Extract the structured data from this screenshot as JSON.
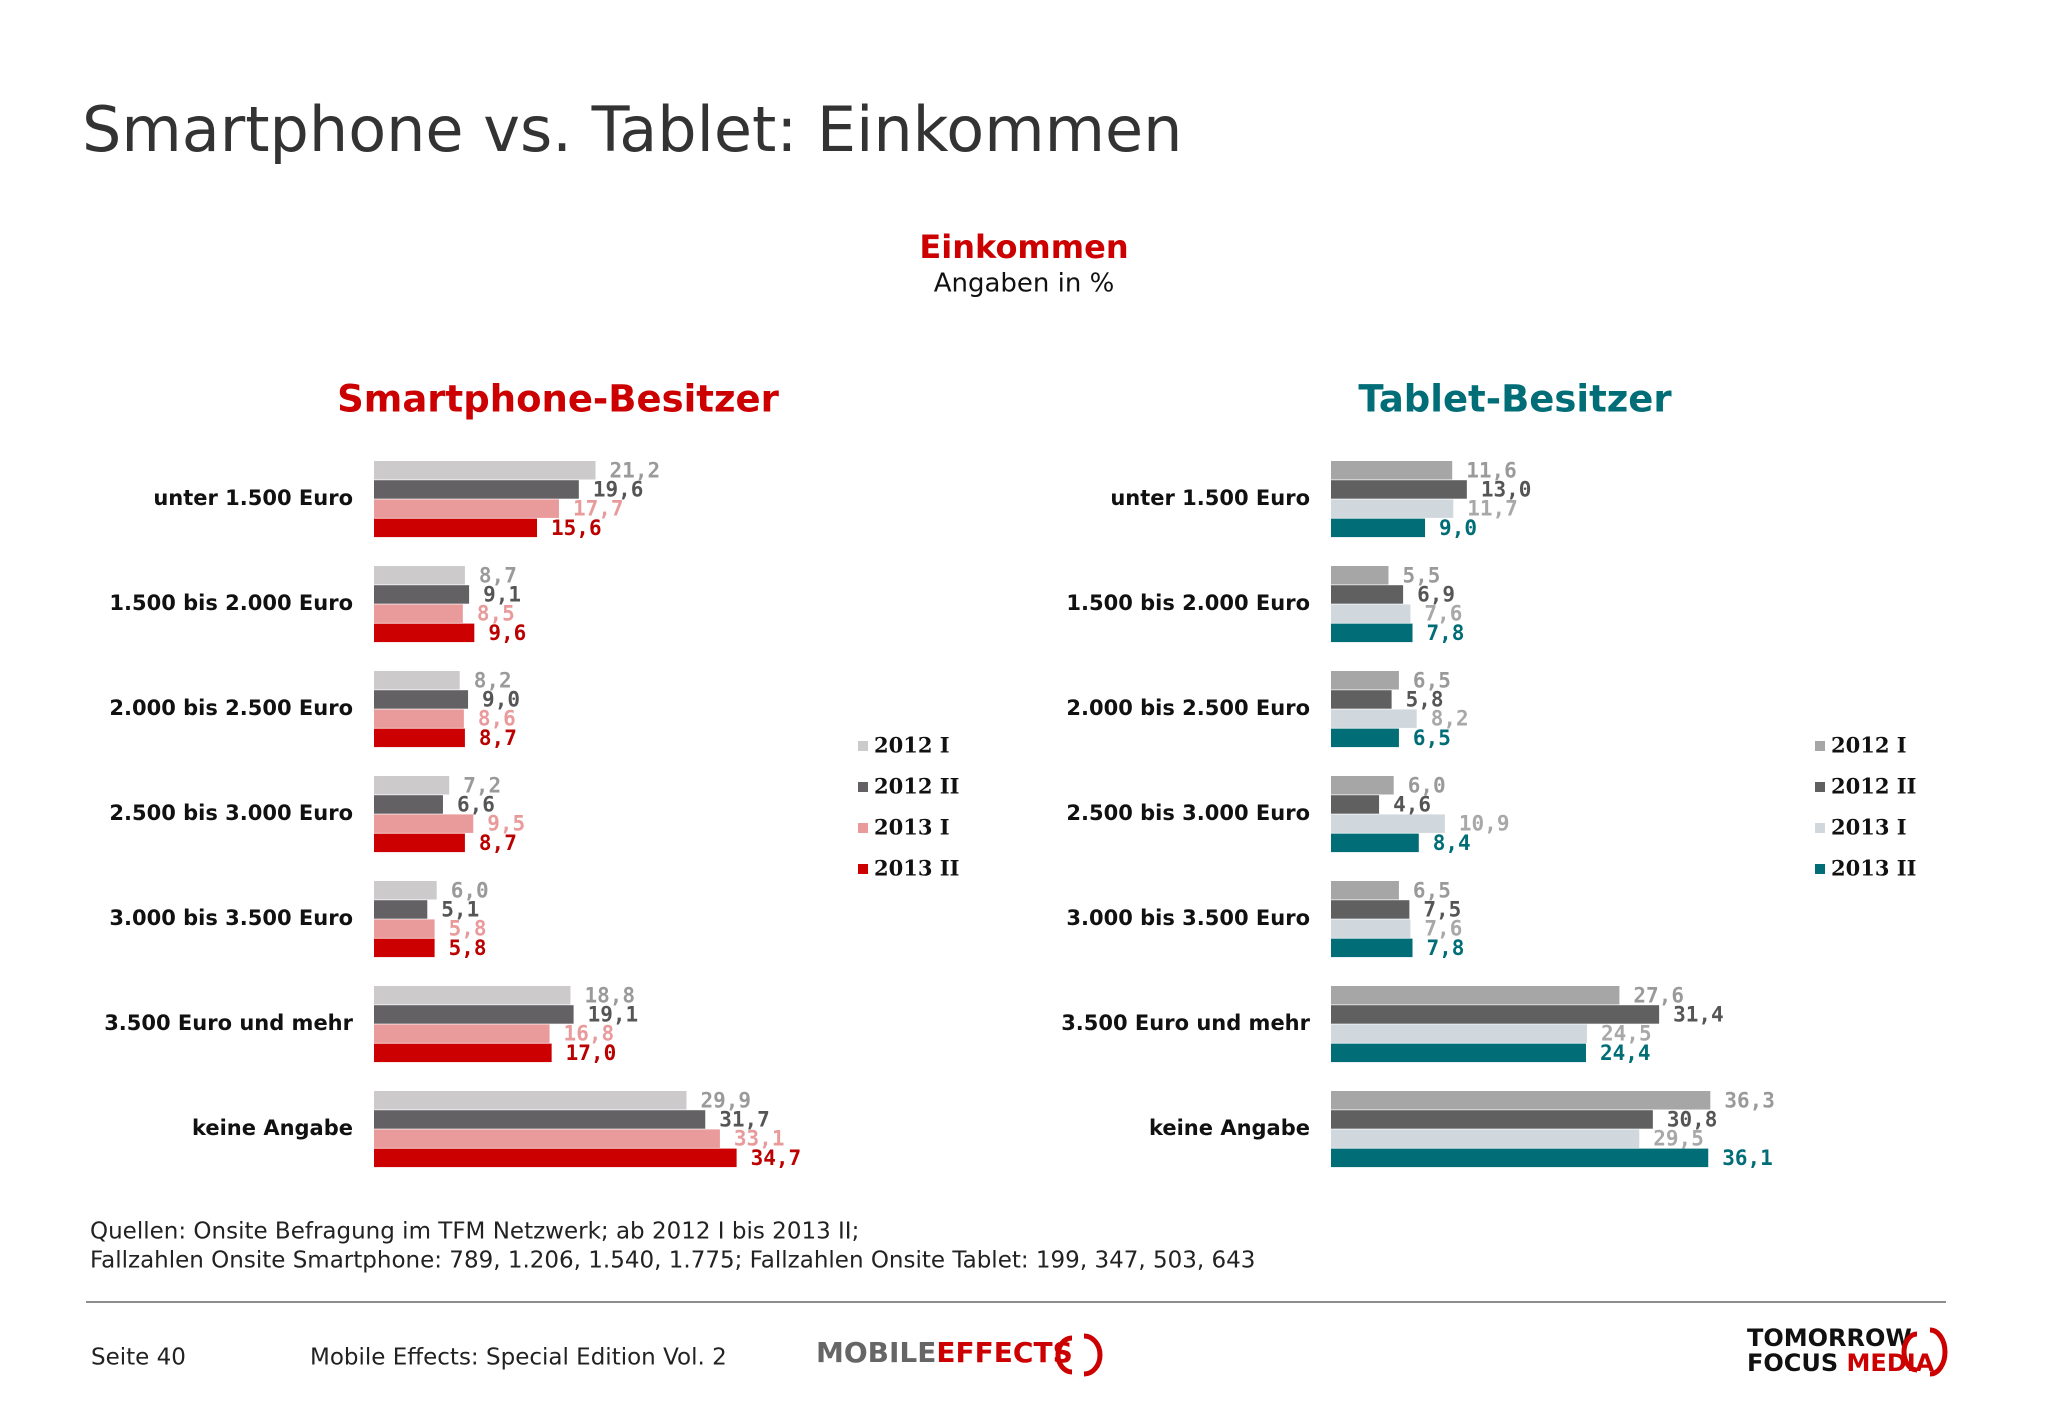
{
  "header": {
    "title": "Smartphone vs. Tablet: Einkommen"
  },
  "subtitle": {
    "title": "Einkommen",
    "note": "Angaben in %"
  },
  "chart_data": [
    {
      "type": "bar",
      "orientation": "horizontal",
      "title": "Smartphone-Besitzer",
      "title_color": "#cc0000",
      "legend": "right",
      "categories": [
        "unter 1.500 Euro",
        "1.500 bis 2.000 Euro",
        "2.000 bis 2.500 Euro",
        "2.500 bis 3.000 Euro",
        "3.000 bis 3.500 Euro",
        "3.500 Euro und mehr",
        "keine Angabe"
      ],
      "series": [
        {
          "name": "2012 I",
          "color": "#cdcacc",
          "label_color": "#9a9a9a",
          "values": [
            21.2,
            8.7,
            8.2,
            7.2,
            6.0,
            18.8,
            29.9
          ],
          "value_labels": [
            "21,2",
            "8,7",
            "8,2",
            "7,2",
            "6,0",
            "18,8",
            "29,9"
          ]
        },
        {
          "name": "2012 II",
          "color": "#636163",
          "label_color": "#555555",
          "values": [
            19.6,
            9.1,
            9.0,
            6.6,
            5.1,
            19.1,
            31.7
          ],
          "value_labels": [
            "19,6",
            "9,1",
            "9,0",
            "6,6",
            "5,1",
            "19,1",
            "31,7"
          ]
        },
        {
          "name": "2013 I",
          "color": "#e99a9b",
          "label_color": "#e99a9b",
          "values": [
            17.7,
            8.5,
            8.6,
            9.5,
            5.8,
            16.8,
            33.1
          ],
          "value_labels": [
            "17,7",
            "8,5",
            "8,6",
            "9,5",
            "5,8",
            "16,8",
            "33,1"
          ]
        },
        {
          "name": "2013 II",
          "color": "#cc0000",
          "label_color": "#bb0000",
          "values": [
            15.6,
            9.6,
            8.7,
            8.7,
            5.8,
            17.0,
            34.7
          ],
          "value_labels": [
            "15,6",
            "9,6",
            "8,7",
            "8,7",
            "5,8",
            "17,0",
            "34,7"
          ]
        }
      ]
    },
    {
      "type": "bar",
      "orientation": "horizontal",
      "title": "Tablet-Besitzer",
      "title_color": "#006d77",
      "legend": "right",
      "categories": [
        "unter 1.500 Euro",
        "1.500 bis 2.000 Euro",
        "2.000 bis 2.500 Euro",
        "2.500 bis 3.000 Euro",
        "3.000 bis 3.500 Euro",
        "3.500 Euro und mehr",
        "keine Angabe"
      ],
      "series": [
        {
          "name": "2012 I",
          "color": "#a6a6a6",
          "label_color": "#9a9a9a",
          "values": [
            11.6,
            5.5,
            6.5,
            6.0,
            6.5,
            27.6,
            36.3
          ],
          "value_labels": [
            "11,6",
            "5,5",
            "6,5",
            "6,0",
            "6,5",
            "27,6",
            "36,3"
          ]
        },
        {
          "name": "2012 II",
          "color": "#606060",
          "label_color": "#555555",
          "values": [
            13.0,
            6.9,
            5.8,
            4.6,
            7.5,
            31.4,
            30.8
          ],
          "value_labels": [
            "13,0",
            "6,9",
            "5,8",
            "4,6",
            "7,5",
            "31,4",
            "30,8"
          ]
        },
        {
          "name": "2013 I",
          "color": "#d0d8de",
          "label_color": "#a8a8a8",
          "values": [
            11.7,
            7.6,
            8.2,
            10.9,
            7.6,
            24.5,
            29.5
          ],
          "value_labels": [
            "11,7",
            "7,6",
            "8,2",
            "10,9",
            "7,6",
            "24,5",
            "29,5"
          ]
        },
        {
          "name": "2013 II",
          "color": "#006d77",
          "label_color": "#006d77",
          "values": [
            9.0,
            7.8,
            6.5,
            8.4,
            7.8,
            24.4,
            36.1
          ],
          "value_labels": [
            "9,0",
            "7,8",
            "6,5",
            "8,4",
            "7,8",
            "24,4",
            "36,1"
          ]
        }
      ]
    }
  ],
  "footer": {
    "sources": [
      "Quellen: Onsite Befragung im TFM Netzwerk; ab 2012 I bis 2013 II;",
      "Fallzahlen Onsite Smartphone: 789, 1.206, 1.540, 1.775; Fallzahlen Onsite Tablet: 199, 347, 503, 643"
    ],
    "page": "Seite 40",
    "publication": "Mobile Effects: Special Edition Vol. 2",
    "logos": {
      "mobile_effects": [
        "MOBILE",
        "EFFECTS"
      ],
      "tomorrow_focus": [
        "TOMORROW",
        "FOCUS",
        "MEDIA"
      ]
    }
  }
}
